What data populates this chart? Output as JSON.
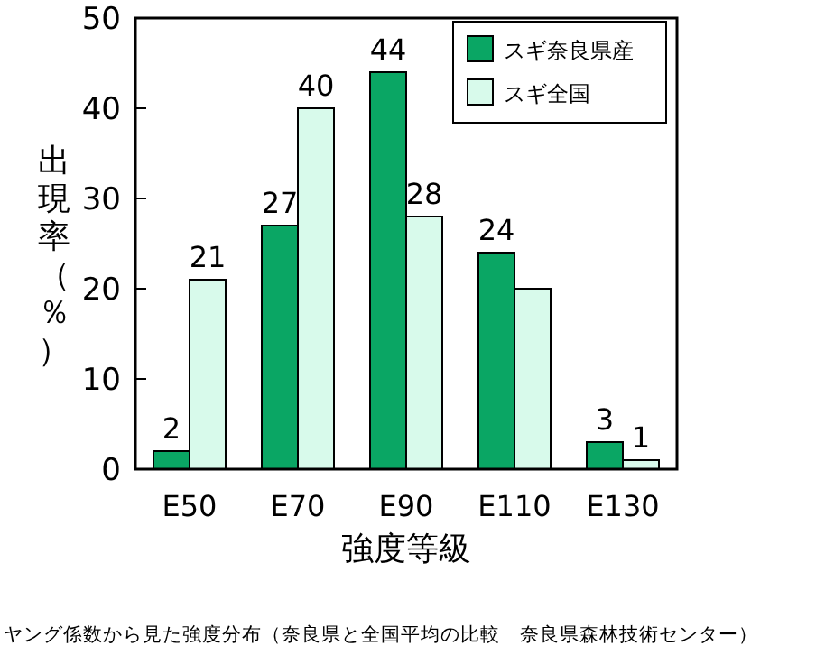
{
  "chart_data": {
    "type": "bar",
    "xlabel": "強度等級",
    "ylabel": "出現率（％）",
    "categories": [
      "E50",
      "E70",
      "E90",
      "E110",
      "E130"
    ],
    "series": [
      {
        "name": "スギ奈良県産",
        "color": "#0aa664",
        "values": [
          2,
          27,
          44,
          24,
          3
        ],
        "value_labels": [
          "2",
          "27",
          "44",
          "24",
          "3"
        ]
      },
      {
        "name": "スギ全国",
        "color": "#d8faeb",
        "values": [
          21,
          40,
          28,
          20,
          1
        ],
        "value_labels": [
          "21",
          "40",
          "28",
          null,
          "1"
        ]
      }
    ],
    "ylim": [
      0,
      50
    ],
    "yticks": [
      0,
      10,
      20,
      30,
      40,
      50
    ],
    "legend": "top right",
    "grid": false,
    "annotations": [
      "ヤング係数から見た強度分布（奈良県と全国平均の比較　奈良県森林技術センター）"
    ]
  }
}
